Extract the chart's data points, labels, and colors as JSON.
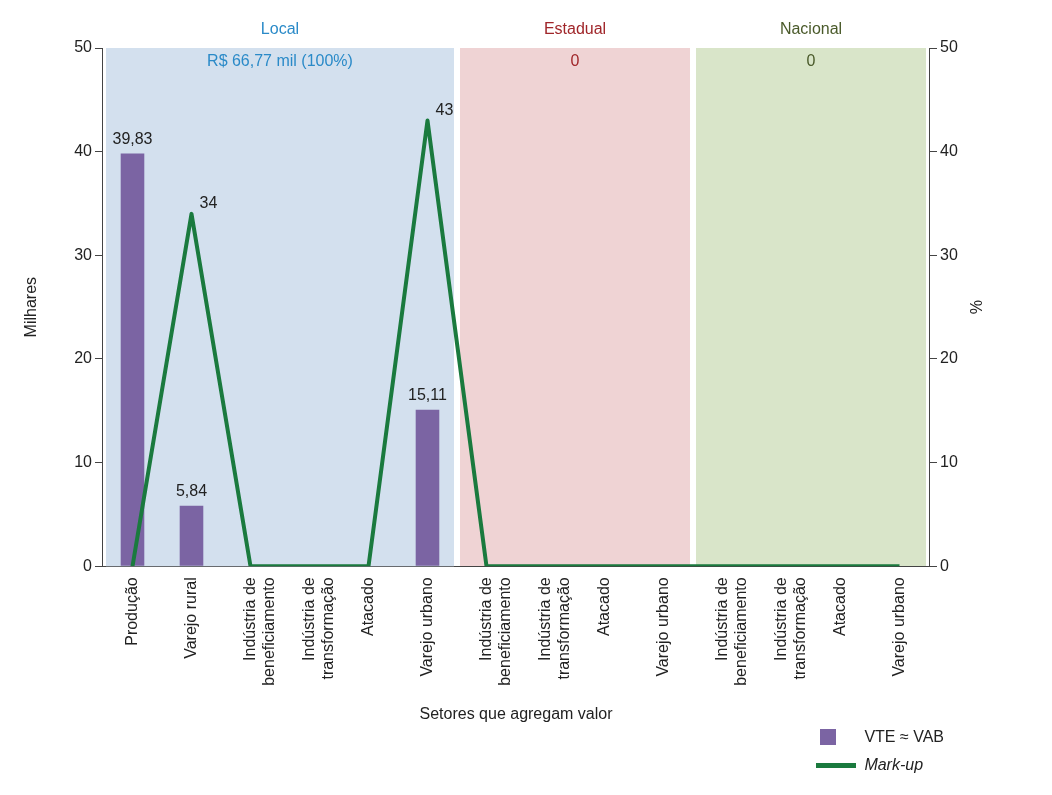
{
  "chart_data": {
    "type": "bar",
    "categories": [
      "Produção",
      "Varejo rural",
      "Indústria de\nbeneficiamento",
      "Indústria de\ntransformação",
      "Atacado",
      "Varejo urbano",
      "Indústria de\nbeneficiamento",
      "Indústria de\ntransformação",
      "Atacado",
      "Varejo urbano",
      "Indústria de\nbeneficiamento",
      "Indústria de\ntransformação",
      "Atacado",
      "Varejo urbano"
    ],
    "series": [
      {
        "name": "VTE ≈ VAB",
        "color": "#7b64a3",
        "values": [
          39.83,
          5.84,
          null,
          null,
          null,
          15.11,
          null,
          null,
          null,
          null,
          null,
          null,
          null,
          null
        ],
        "value_labels": [
          "39,83",
          "5,84",
          null,
          null,
          null,
          "15,11",
          null,
          null,
          null,
          null,
          null,
          null,
          null,
          null
        ]
      },
      {
        "name": "Mark-up",
        "type": "line",
        "axis": "y2",
        "color": "#1a7a3e",
        "values": [
          0,
          34,
          0,
          0,
          0,
          43,
          0,
          0,
          0,
          0,
          0,
          0,
          0,
          0
        ],
        "value_labels": [
          null,
          "34",
          null,
          null,
          null,
          "43",
          null,
          null,
          null,
          null,
          null,
          null,
          null,
          null
        ]
      }
    ],
    "xlabel": "Setores que agregam valor",
    "ylabel": "Milhares",
    "y2label": "%",
    "ylim": [
      0,
      50
    ],
    "yticks": [
      0,
      10,
      20,
      30,
      40,
      50
    ],
    "y2lim": [
      0,
      50
    ],
    "y2ticks": [
      0,
      10,
      20,
      30,
      40,
      50
    ],
    "bands": [
      {
        "axis": "x",
        "from": "Produção",
        "to": "Varejo urbano",
        "label": "Local",
        "color": "#d3e0ee"
      }
    ],
    "annotations": [
      "R$ 66,77 mil (100%)",
      "Estadual",
      "0",
      "Nacional",
      "0"
    ],
    "legend": "bottom right",
    "grid": false,
    "marker": "none",
    "line_style": "solid"
  }
}
